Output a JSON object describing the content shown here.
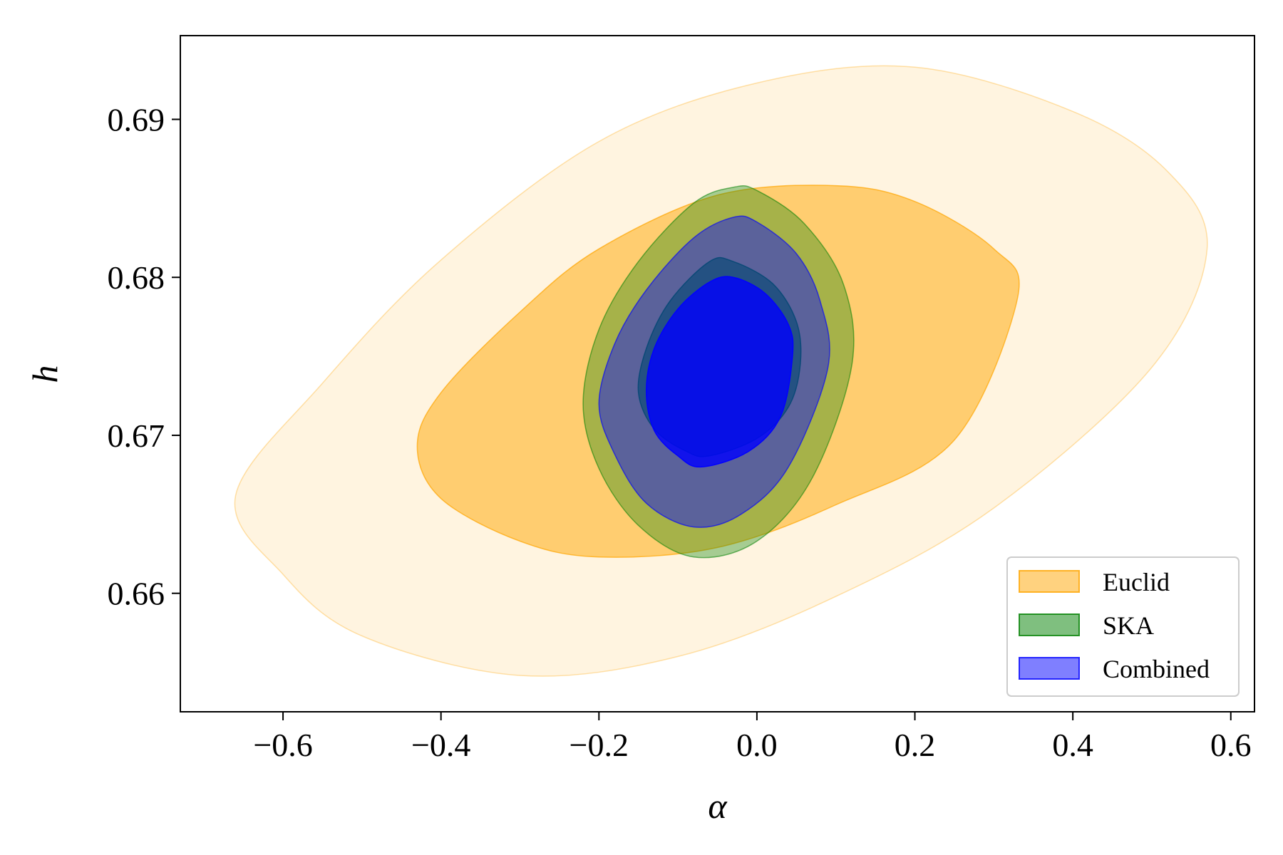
{
  "chart_data": {
    "type": "contour",
    "xlabel": "α",
    "ylabel": "h",
    "xlim": [
      -0.73,
      0.63
    ],
    "ylim": [
      0.6525,
      0.6953
    ],
    "x_ticks": [
      -0.6,
      -0.4,
      -0.2,
      0.0,
      0.2,
      0.4,
      0.6
    ],
    "x_tick_labels": [
      "−0.6",
      "−0.4",
      "−0.2",
      "0.0",
      "0.2",
      "0.4",
      "0.6"
    ],
    "y_ticks": [
      0.66,
      0.67,
      0.68,
      0.69
    ],
    "y_tick_labels": [
      "0.66",
      "0.67",
      "0.68",
      "0.69"
    ],
    "grid": false,
    "legend_position": "lower-right",
    "series": [
      {
        "name": "Euclid",
        "color": "#FFA500",
        "contours": [
          {
            "level": "2-sigma",
            "opacity": 0.12,
            "points": [
              [
                -0.66,
                0.6662
              ],
              [
                -0.6,
                0.6612
              ],
              [
                -0.5,
                0.6573
              ],
              [
                -0.3,
                0.6548
              ],
              [
                -0.1,
                0.656
              ],
              [
                0.1,
                0.6598
              ],
              [
                0.3,
                0.6654
              ],
              [
                0.5,
                0.6743
              ],
              [
                0.57,
                0.6818
              ],
              [
                0.52,
                0.6867
              ],
              [
                0.4,
                0.6905
              ],
              [
                0.2,
                0.6933
              ],
              [
                0.0,
                0.6923
              ],
              [
                -0.2,
                0.6886
              ],
              [
                -0.4,
                0.6811
              ],
              [
                -0.55,
                0.6733
              ],
              [
                -0.66,
                0.6662
              ]
            ]
          },
          {
            "level": "1-sigma",
            "opacity": 0.5,
            "points": [
              [
                -0.43,
                0.6693
              ],
              [
                -0.4,
                0.666
              ],
              [
                -0.3,
                0.6633
              ],
              [
                -0.2,
                0.6623
              ],
              [
                -0.05,
                0.6629
              ],
              [
                0.1,
                0.6656
              ],
              [
                0.25,
                0.6697
              ],
              [
                0.33,
                0.6787
              ],
              [
                0.3,
                0.6818
              ],
              [
                0.2,
                0.6848
              ],
              [
                0.1,
                0.6858
              ],
              [
                -0.05,
                0.6852
              ],
              [
                -0.2,
                0.6818
              ],
              [
                -0.3,
                0.6778
              ],
              [
                -0.4,
                0.6727
              ],
              [
                -0.43,
                0.6693
              ]
            ]
          }
        ]
      },
      {
        "name": "SKA",
        "color": "#008000",
        "contours": [
          {
            "level": "2-sigma",
            "opacity": 0.35,
            "points": [
              [
                -0.22,
                0.672
              ],
              [
                -0.2,
                0.6679
              ],
              [
                -0.15,
                0.6643
              ],
              [
                -0.08,
                0.6623
              ],
              [
                0.0,
                0.6633
              ],
              [
                0.07,
                0.6673
              ],
              [
                0.12,
                0.6744
              ],
              [
                0.11,
                0.6795
              ],
              [
                0.06,
                0.6834
              ],
              [
                0.0,
                0.6855
              ],
              [
                -0.03,
                0.6857
              ],
              [
                -0.08,
                0.6847
              ],
              [
                -0.15,
                0.681
              ],
              [
                -0.2,
                0.6767
              ],
              [
                -0.22,
                0.672
              ]
            ]
          },
          {
            "level": "1-sigma",
            "opacity": 0.6,
            "points": [
              [
                -0.15,
                0.6727
              ],
              [
                -0.13,
                0.6704
              ],
              [
                -0.09,
                0.669
              ],
              [
                -0.06,
                0.6687
              ],
              [
                0.0,
                0.6698
              ],
              [
                0.04,
                0.6718
              ],
              [
                0.055,
                0.6745
              ],
              [
                0.05,
                0.6772
              ],
              [
                0.02,
                0.6796
              ],
              [
                -0.03,
                0.681
              ],
              [
                -0.06,
                0.681
              ],
              [
                -0.11,
                0.6785
              ],
              [
                -0.14,
                0.6755
              ],
              [
                -0.15,
                0.6727
              ]
            ]
          }
        ]
      },
      {
        "name": "Combined",
        "color": "#0000FF",
        "contours": [
          {
            "level": "2-sigma",
            "opacity": 0.45,
            "points": [
              [
                -0.2,
                0.672
              ],
              [
                -0.18,
                0.6688
              ],
              [
                -0.14,
                0.6657
              ],
              [
                -0.08,
                0.6642
              ],
              [
                -0.02,
                0.665
              ],
              [
                0.04,
                0.668
              ],
              [
                0.09,
                0.6743
              ],
              [
                0.08,
                0.6785
              ],
              [
                0.05,
                0.6815
              ],
              [
                0.0,
                0.6835
              ],
              [
                -0.03,
                0.6838
              ],
              [
                -0.08,
                0.6825
              ],
              [
                -0.14,
                0.6792
              ],
              [
                -0.18,
                0.6758
              ],
              [
                -0.2,
                0.672
              ]
            ]
          },
          {
            "level": "1-sigma",
            "opacity": 0.8,
            "points": [
              [
                -0.14,
                0.6728
              ],
              [
                -0.13,
                0.6703
              ],
              [
                -0.1,
                0.6687
              ],
              [
                -0.07,
                0.668
              ],
              [
                -0.01,
                0.669
              ],
              [
                0.03,
                0.6712
              ],
              [
                0.045,
                0.675
              ],
              [
                0.04,
                0.677
              ],
              [
                0.01,
                0.679
              ],
              [
                -0.03,
                0.68
              ],
              [
                -0.06,
                0.6797
              ],
              [
                -0.1,
                0.678
              ],
              [
                -0.13,
                0.6755
              ],
              [
                -0.14,
                0.6728
              ]
            ]
          }
        ]
      }
    ]
  }
}
